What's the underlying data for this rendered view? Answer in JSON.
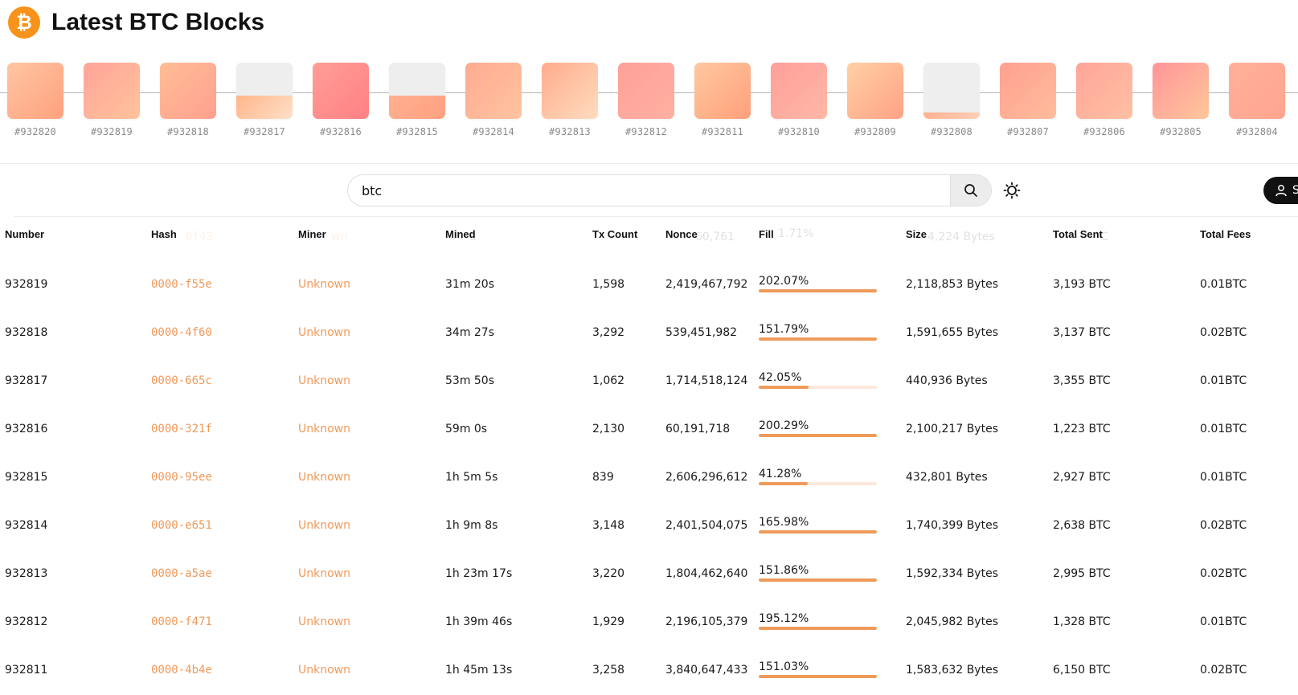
{
  "header": {
    "logo_glyph": "₿",
    "title": "Latest BTC Blocks"
  },
  "colors": {
    "accent": "#ef9a5b",
    "bitcoin": "#f7931a"
  },
  "blocks": [
    {
      "label": "#932820",
      "fill": 1.0,
      "grad": "linear-gradient(135deg,#ffc5a3,#ffa17d)"
    },
    {
      "label": "#932819",
      "fill": 1.0,
      "grad": "linear-gradient(135deg,#ffa49a,#ffc39a)"
    },
    {
      "label": "#932818",
      "fill": 1.0,
      "grad": "linear-gradient(135deg,#ffbd95,#ffa090)"
    },
    {
      "label": "#932817",
      "fill": 0.42,
      "grad": "linear-gradient(135deg,#ffb58a,#ffe0c8)"
    },
    {
      "label": "#932816",
      "fill": 1.0,
      "grad": "linear-gradient(135deg,#ff9e95,#ff8085)"
    },
    {
      "label": "#932815",
      "fill": 0.41,
      "grad": "linear-gradient(135deg,#ffb090,#ffa080)"
    },
    {
      "label": "#932814",
      "fill": 1.0,
      "grad": "linear-gradient(135deg,#ffab90,#ffc3a0)"
    },
    {
      "label": "#932813",
      "fill": 1.0,
      "grad": "linear-gradient(135deg,#ffac8c,#ffdcbf)"
    },
    {
      "label": "#932812",
      "fill": 1.0,
      "grad": "linear-gradient(135deg,#ffa09a,#ffb0a0)"
    },
    {
      "label": "#932811",
      "fill": 1.0,
      "grad": "linear-gradient(135deg,#ffc8a0,#ffa07a)"
    },
    {
      "label": "#932810",
      "fill": 1.0,
      "grad": "linear-gradient(135deg,#ff9f9a,#ffb8a6)"
    },
    {
      "label": "#932809",
      "fill": 1.0,
      "grad": "linear-gradient(135deg,#ffd0a5,#ffa285)"
    },
    {
      "label": "#932808",
      "fill": 0.12,
      "grad": "linear-gradient(135deg,#ffb090,#ffd0b8)"
    },
    {
      "label": "#932807",
      "fill": 1.0,
      "grad": "linear-gradient(135deg,#ffa090,#ffbd9c)"
    },
    {
      "label": "#932806",
      "fill": 1.0,
      "grad": "linear-gradient(135deg,#ffa599,#ffc0a3)"
    },
    {
      "label": "#932805",
      "fill": 1.0,
      "grad": "linear-gradient(135deg,#ff9599,#ffc79a)"
    },
    {
      "label": "#932804",
      "fill": 1.0,
      "grad": "linear-gradient(135deg,#ffb09a,#ffa590)"
    }
  ],
  "search": {
    "value": "btc",
    "icon": "search-icon"
  },
  "theme_toggle": {
    "icon": "sun-icon"
  },
  "signin": {
    "label": "S",
    "icon": "user-icon"
  },
  "table": {
    "columns": [
      "Number",
      "Hash",
      "Miner",
      "Mined",
      "Tx Count",
      "Nonce",
      "Fill",
      "Size",
      "Total Sent",
      "Total Fees"
    ],
    "ghost_row": {
      "hash": "0f43",
      "miner": "wn",
      "mined": "s",
      "nonce": "60,761",
      "fill": "1.71%",
      "size": "4,224 Bytes",
      "sent": "C"
    },
    "rows": [
      {
        "number": "932819",
        "hash": "0000-f55e",
        "miner": "Unknown",
        "mined": "31m 20s",
        "tx": "1,598",
        "nonce": "2,419,467,792",
        "fill": "202.07%",
        "fill_value": 202.07,
        "size": "2,118,853 Bytes",
        "sent": "3,193 BTC",
        "fees": "0.01BTC"
      },
      {
        "number": "932818",
        "hash": "0000-4f60",
        "miner": "Unknown",
        "mined": "34m 27s",
        "tx": "3,292",
        "nonce": "539,451,982",
        "fill": "151.79%",
        "fill_value": 151.79,
        "size": "1,591,655 Bytes",
        "sent": "3,137 BTC",
        "fees": "0.02BTC"
      },
      {
        "number": "932817",
        "hash": "0000-665c",
        "miner": "Unknown",
        "mined": "53m 50s",
        "tx": "1,062",
        "nonce": "1,714,518,124",
        "fill": "42.05%",
        "fill_value": 42.05,
        "size": "440,936 Bytes",
        "sent": "3,355 BTC",
        "fees": "0.01BTC"
      },
      {
        "number": "932816",
        "hash": "0000-321f",
        "miner": "Unknown",
        "mined": "59m 0s",
        "tx": "2,130",
        "nonce": "60,191,718",
        "fill": "200.29%",
        "fill_value": 200.29,
        "size": "2,100,217 Bytes",
        "sent": "1,223 BTC",
        "fees": "0.01BTC"
      },
      {
        "number": "932815",
        "hash": "0000-95ee",
        "miner": "Unknown",
        "mined": "1h 5m 5s",
        "tx": "839",
        "nonce": "2,606,296,612",
        "fill": "41.28%",
        "fill_value": 41.28,
        "size": "432,801 Bytes",
        "sent": "2,927 BTC",
        "fees": "0.01BTC"
      },
      {
        "number": "932814",
        "hash": "0000-e651",
        "miner": "Unknown",
        "mined": "1h 9m 8s",
        "tx": "3,148",
        "nonce": "2,401,504,075",
        "fill": "165.98%",
        "fill_value": 165.98,
        "size": "1,740,399 Bytes",
        "sent": "2,638 BTC",
        "fees": "0.02BTC"
      },
      {
        "number": "932813",
        "hash": "0000-a5ae",
        "miner": "Unknown",
        "mined": "1h 23m 17s",
        "tx": "3,220",
        "nonce": "1,804,462,640",
        "fill": "151.86%",
        "fill_value": 151.86,
        "size": "1,592,334 Bytes",
        "sent": "2,995 BTC",
        "fees": "0.02BTC"
      },
      {
        "number": "932812",
        "hash": "0000-f471",
        "miner": "Unknown",
        "mined": "1h 39m 46s",
        "tx": "1,929",
        "nonce": "2,196,105,379",
        "fill": "195.12%",
        "fill_value": 195.12,
        "size": "2,045,982 Bytes",
        "sent": "1,328 BTC",
        "fees": "0.01BTC"
      },
      {
        "number": "932811",
        "hash": "0000-4b4e",
        "miner": "Unknown",
        "mined": "1h 45m 13s",
        "tx": "3,258",
        "nonce": "3,840,647,433",
        "fill": "151.03%",
        "fill_value": 151.03,
        "size": "1,583,632 Bytes",
        "sent": "6,150 BTC",
        "fees": "0.02BTC"
      }
    ]
  }
}
